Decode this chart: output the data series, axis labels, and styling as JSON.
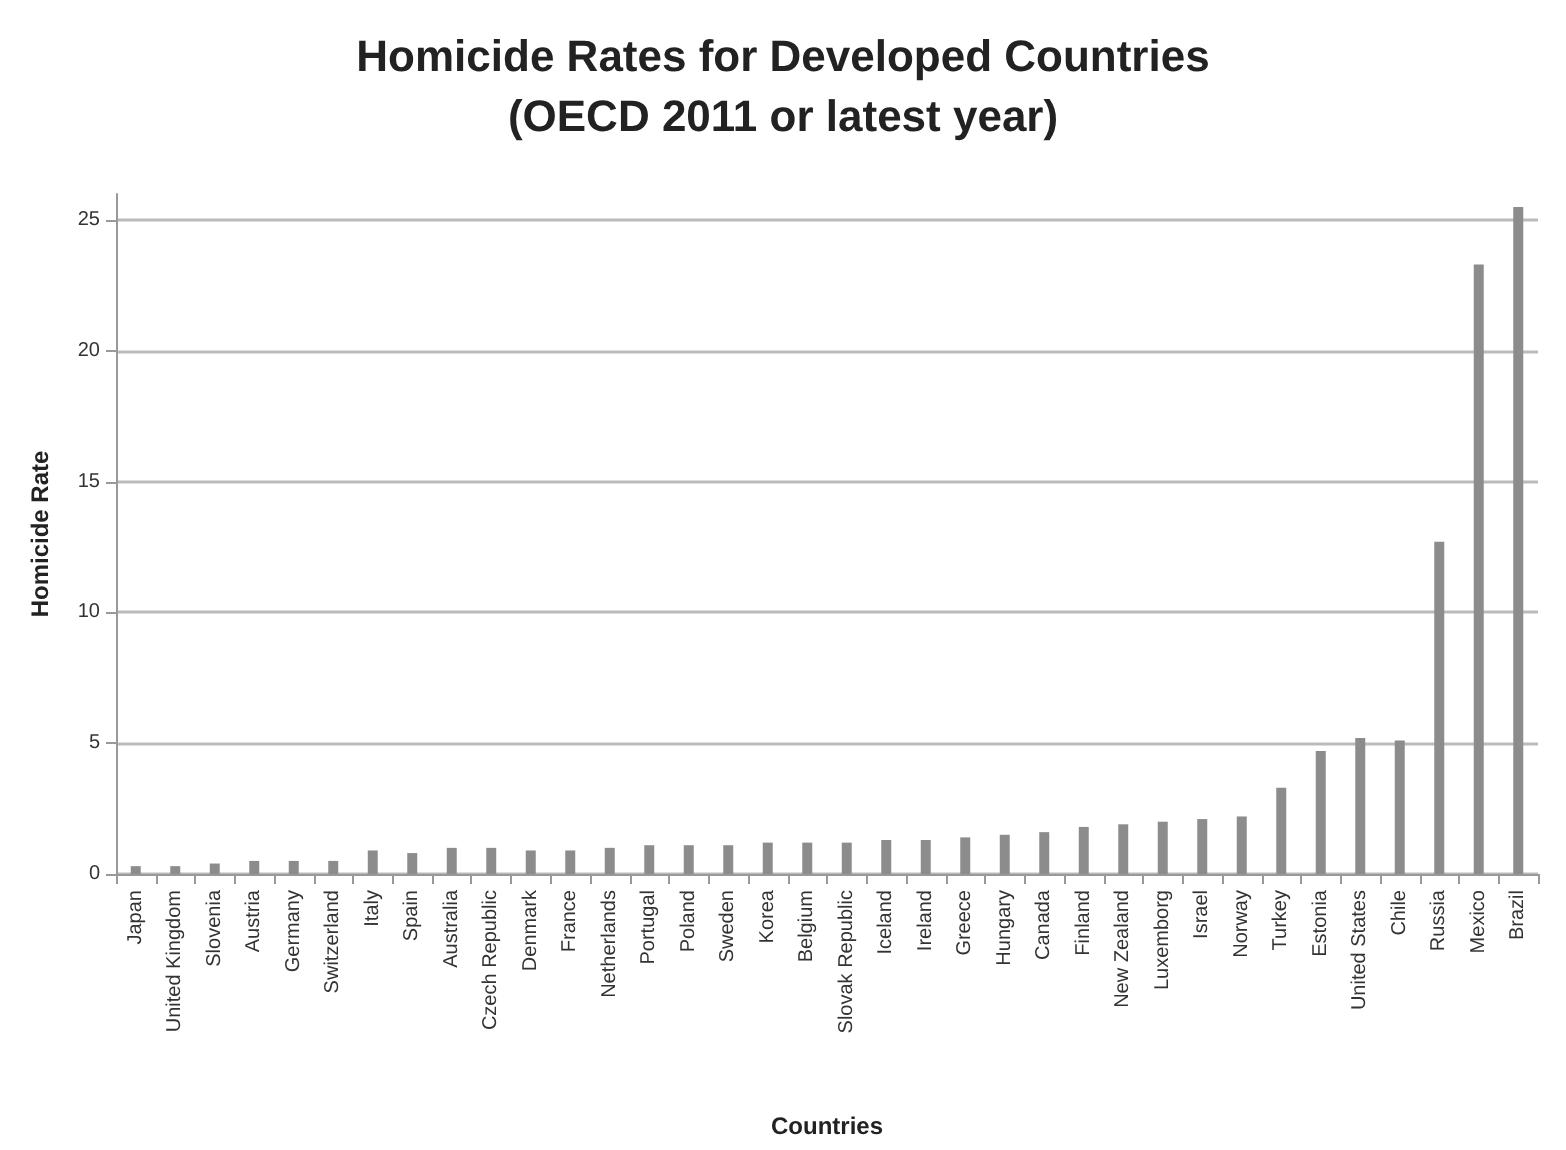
{
  "chart_data": {
    "type": "bar",
    "title": "Homicide Rates for Developed Countries\n(OECD 2011 or latest year)",
    "xlabel": "Countries",
    "ylabel": "Homicide Rate",
    "categories": [
      "Japan",
      "United Kingdom",
      "Slovenia",
      "Austria",
      "Germany",
      "Switzerland",
      "Italy",
      "Spain",
      "Australia",
      "Czech Republic",
      "Denmark",
      "France",
      "Netherlands",
      "Portugal",
      "Poland",
      "Sweden",
      "Korea",
      "Belgium",
      "Slovak Republic",
      "Iceland",
      "Ireland",
      "Greece",
      "Hungary",
      "Canada",
      "Finland",
      "New Zealand",
      "Luxemborg",
      "Israel",
      "Norway",
      "Turkey",
      "Estonia",
      "United States",
      "Chile",
      "Russia",
      "Mexico",
      "Brazil"
    ],
    "values": [
      0.3,
      0.3,
      0.4,
      0.5,
      0.5,
      0.5,
      0.9,
      0.8,
      1.0,
      1.0,
      0.9,
      0.9,
      1.0,
      1.1,
      1.1,
      1.1,
      1.2,
      1.2,
      1.2,
      1.3,
      1.3,
      1.4,
      1.5,
      1.6,
      1.8,
      1.9,
      2.0,
      2.1,
      2.2,
      3.3,
      4.7,
      5.2,
      5.1,
      12.7,
      23.3,
      25.5
    ],
    "color": "#8c8c8c",
    "ylim": [
      0,
      26
    ],
    "yticks": [
      0,
      5,
      10,
      15,
      20,
      25
    ],
    "grid": "y"
  }
}
